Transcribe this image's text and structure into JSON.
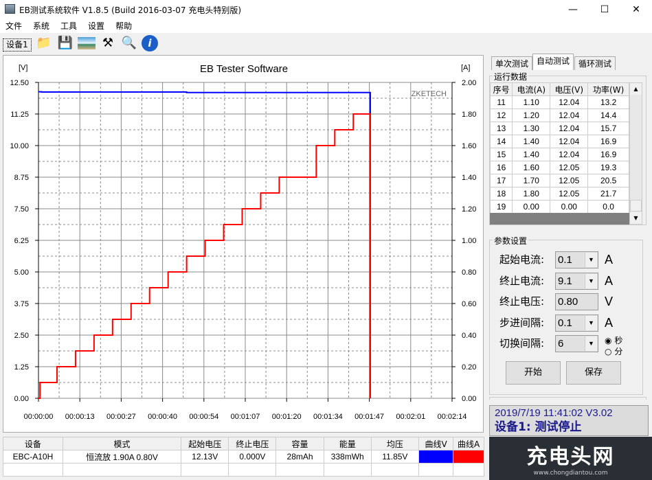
{
  "window": {
    "title": "EB测试系统软件 V1.8.5 (Build 2016-03-07 充电头特别版)"
  },
  "menu": [
    "文件",
    "系统",
    "工具",
    "设置",
    "帮助"
  ],
  "toolbar": {
    "device_tab": "设备1",
    "icons": [
      "open-folder-icon",
      "save-icon",
      "image-icon",
      "tools-icon",
      "search-icon",
      "info-icon"
    ]
  },
  "chart_data": {
    "type": "line",
    "title": "EB Tester Software",
    "ylabel_left": "[V]",
    "ylabel_right": "[A]",
    "watermark": "ZKETECH",
    "ylim_left": [
      0,
      12.5
    ],
    "ylim_right": [
      0,
      2.0
    ],
    "yticks_left": [
      "0.00",
      "1.25",
      "2.50",
      "3.75",
      "5.00",
      "6.25",
      "7.50",
      "8.75",
      "10.00",
      "11.25",
      "12.50"
    ],
    "yticks_right": [
      "0.00",
      "0.20",
      "0.40",
      "0.60",
      "0.80",
      "1.00",
      "1.20",
      "1.40",
      "1.60",
      "1.80",
      "2.00"
    ],
    "xticks": [
      "00:00:00",
      "00:00:13",
      "00:00:27",
      "00:00:40",
      "00:00:54",
      "00:01:07",
      "00:01:20",
      "00:01:34",
      "00:01:47",
      "00:02:01",
      "00:02:14"
    ],
    "xlim_seconds": [
      0,
      134
    ],
    "grid": true,
    "series": [
      {
        "axis": "left",
        "color": "#0000ff",
        "x": [
          0,
          1,
          18,
          48,
          107.5,
          107.5
        ],
        "y": [
          12.13,
          12.12,
          12.12,
          12.1,
          12.08,
          0
        ]
      },
      {
        "axis": "right",
        "color": "#ff0000",
        "x": [
          0,
          0.5,
          6,
          12,
          18,
          24,
          30,
          36,
          42,
          48,
          54,
          60,
          66,
          72,
          78,
          84,
          90,
          96,
          102,
          107.5,
          107.5
        ],
        "y": [
          0,
          0.1,
          0.2,
          0.3,
          0.4,
          0.5,
          0.6,
          0.7,
          0.8,
          0.9,
          1.0,
          1.1,
          1.2,
          1.3,
          1.4,
          1.4,
          1.6,
          1.7,
          1.8,
          1.8,
          0
        ]
      }
    ]
  },
  "right": {
    "tabs": [
      "单次测试",
      "自动测试",
      "循环测试"
    ],
    "run_group": "运行数据",
    "columns": [
      "序号",
      "电流(A)",
      "电压(V)",
      "功率(W)"
    ],
    "rows": [
      [
        "11",
        "1.10",
        "12.04",
        "13.2"
      ],
      [
        "12",
        "1.20",
        "12.04",
        "14.4"
      ],
      [
        "13",
        "1.30",
        "12.04",
        "15.7"
      ],
      [
        "14",
        "1.40",
        "12.04",
        "16.9"
      ],
      [
        "15",
        "1.40",
        "12.04",
        "16.9"
      ],
      [
        "16",
        "1.60",
        "12.05",
        "19.3"
      ],
      [
        "17",
        "1.70",
        "12.05",
        "20.5"
      ],
      [
        "18",
        "1.80",
        "12.05",
        "21.7"
      ],
      [
        "19",
        "0.00",
        "0.00",
        "0.0"
      ]
    ],
    "params_group": "参数设置",
    "params": [
      {
        "label": "起始电流:",
        "value": "0.1",
        "unit": "A",
        "dropdown": true
      },
      {
        "label": "终止电流:",
        "value": "9.1",
        "unit": "A",
        "dropdown": true
      },
      {
        "label": "终止电压:",
        "value": "0.80",
        "unit": "V",
        "dropdown": false
      },
      {
        "label": "步进间隔:",
        "value": "0.1",
        "unit": "A",
        "dropdown": true
      },
      {
        "label": "切换间隔:",
        "value": "6",
        "unit": "",
        "dropdown": true
      }
    ],
    "radio": {
      "sec": "秒",
      "min": "分",
      "selected": "秒"
    },
    "start_label": "开始",
    "save_label": "保存",
    "status_line1": "2019/7/19 11:41:02  V3.02",
    "status_line2": "设备1: 测试停止"
  },
  "bottom_table": {
    "columns": [
      "设备",
      "模式",
      "起始电压",
      "终止电压",
      "容量",
      "能量",
      "均压",
      "曲线V",
      "曲线A"
    ],
    "row": [
      "EBC-A10H",
      "恒流放 1.90A 0.80V",
      "12.13V",
      "0.000V",
      "28mAh",
      "338mWh",
      "11.85V"
    ],
    "curve_colors": [
      "#0000ff",
      "#ff0000"
    ]
  },
  "logo": {
    "text": "充电头网",
    "url_text": "www.chongdiantou.com"
  }
}
